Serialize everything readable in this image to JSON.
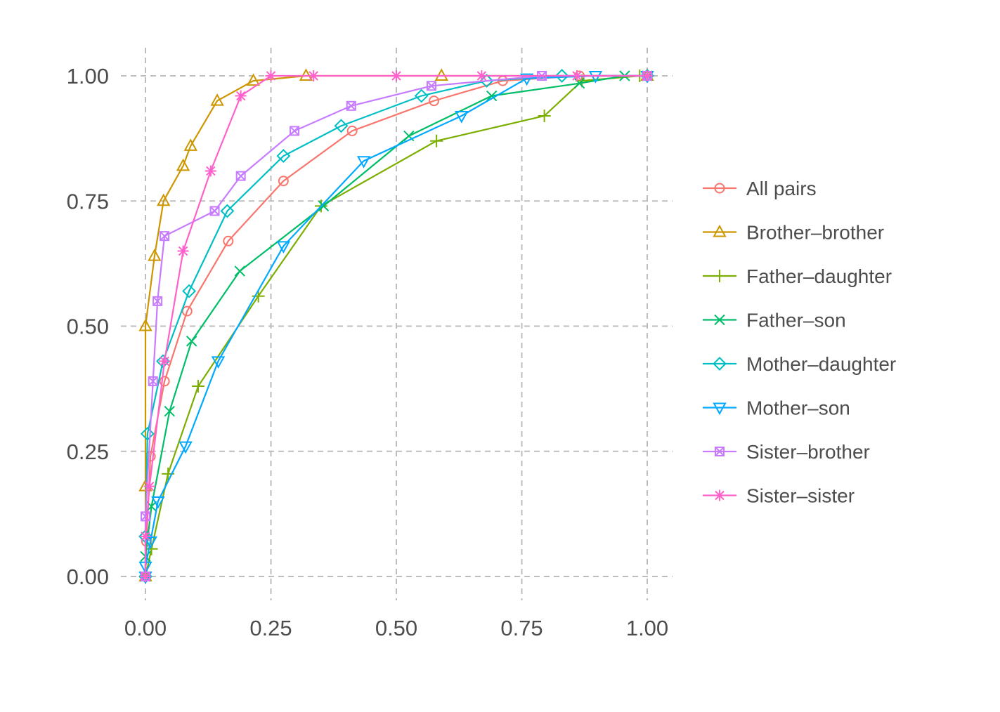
{
  "chart_data": {
    "type": "line",
    "title": "",
    "xlabel": "",
    "ylabel": "",
    "xlim": [
      0,
      1
    ],
    "ylim": [
      0,
      1
    ],
    "x_ticks": [
      "0.00",
      "0.25",
      "0.50",
      "0.75",
      "1.00"
    ],
    "y_ticks": [
      "0.00",
      "0.25",
      "0.50",
      "0.75",
      "1.00"
    ],
    "grid": true,
    "legend_position": "right",
    "series": [
      {
        "name": "All pairs",
        "color": "#F8766D",
        "marker": "circle",
        "points": [
          [
            0,
            0
          ],
          [
            0.002,
            0.07
          ],
          [
            0.01,
            0.24
          ],
          [
            0.038,
            0.39
          ],
          [
            0.083,
            0.53
          ],
          [
            0.165,
            0.67
          ],
          [
            0.275,
            0.79
          ],
          [
            0.412,
            0.89
          ],
          [
            0.575,
            0.95
          ],
          [
            0.712,
            0.99
          ],
          [
            0.865,
            1.0
          ],
          [
            1.0,
            1.0
          ]
        ]
      },
      {
        "name": "Brother–brother",
        "color": "#CD9600",
        "marker": "triangle",
        "points": [
          [
            0,
            0
          ],
          [
            0,
            0.18
          ],
          [
            0,
            0.5
          ],
          [
            0.018,
            0.64
          ],
          [
            0.036,
            0.75
          ],
          [
            0.075,
            0.82
          ],
          [
            0.09,
            0.86
          ],
          [
            0.143,
            0.95
          ],
          [
            0.215,
            0.99
          ],
          [
            0.32,
            1.0
          ],
          [
            0.59,
            1.0
          ],
          [
            1.0,
            1.0
          ]
        ]
      },
      {
        "name": "Father–daughter",
        "color": "#7CAE00",
        "marker": "plus",
        "points": [
          [
            0,
            0
          ],
          [
            0.012,
            0.055
          ],
          [
            0.045,
            0.205
          ],
          [
            0.105,
            0.38
          ],
          [
            0.225,
            0.56
          ],
          [
            0.35,
            0.74
          ],
          [
            0.58,
            0.87
          ],
          [
            0.795,
            0.92
          ],
          [
            0.87,
            0.99
          ],
          [
            0.985,
            1.0
          ],
          [
            1.0,
            1.0
          ]
        ]
      },
      {
        "name": "Father–son",
        "color": "#00BE67",
        "marker": "x",
        "points": [
          [
            0,
            0
          ],
          [
            0,
            0.04
          ],
          [
            0.012,
            0.14
          ],
          [
            0.048,
            0.33
          ],
          [
            0.092,
            0.47
          ],
          [
            0.188,
            0.61
          ],
          [
            0.355,
            0.74
          ],
          [
            0.525,
            0.88
          ],
          [
            0.69,
            0.96
          ],
          [
            0.865,
            0.985
          ],
          [
            0.955,
            1.0
          ],
          [
            1.0,
            1.0
          ]
        ]
      },
      {
        "name": "Mother–daughter",
        "color": "#00BFC4",
        "marker": "diamond",
        "points": [
          [
            0,
            0
          ],
          [
            0,
            0.08
          ],
          [
            0.004,
            0.285
          ],
          [
            0.035,
            0.43
          ],
          [
            0.087,
            0.57
          ],
          [
            0.163,
            0.73
          ],
          [
            0.275,
            0.84
          ],
          [
            0.39,
            0.9
          ],
          [
            0.55,
            0.96
          ],
          [
            0.68,
            0.99
          ],
          [
            0.83,
            1.0
          ],
          [
            1.0,
            1.0
          ]
        ]
      },
      {
        "name": "Mother–son",
        "color": "#00A9FF",
        "marker": "triangle-down",
        "points": [
          [
            0,
            0
          ],
          [
            0,
            0.02
          ],
          [
            0.01,
            0.07
          ],
          [
            0.025,
            0.15
          ],
          [
            0.08,
            0.26
          ],
          [
            0.145,
            0.43
          ],
          [
            0.275,
            0.66
          ],
          [
            0.435,
            0.83
          ],
          [
            0.63,
            0.92
          ],
          [
            0.76,
            0.995
          ],
          [
            0.897,
            1.0
          ],
          [
            1.0,
            1.0
          ]
        ]
      },
      {
        "name": "Sister–brother",
        "color": "#C77CFF",
        "marker": "square-x",
        "points": [
          [
            0,
            0
          ],
          [
            0,
            0.12
          ],
          [
            0.015,
            0.39
          ],
          [
            0.024,
            0.55
          ],
          [
            0.038,
            0.68
          ],
          [
            0.138,
            0.73
          ],
          [
            0.19,
            0.8
          ],
          [
            0.297,
            0.89
          ],
          [
            0.41,
            0.94
          ],
          [
            0.57,
            0.98
          ],
          [
            0.79,
            1.0
          ],
          [
            1.0,
            1.0
          ]
        ]
      },
      {
        "name": "Sister–sister",
        "color": "#FF61CC",
        "marker": "asterisk",
        "points": [
          [
            0,
            0
          ],
          [
            0,
            0.08
          ],
          [
            0.008,
            0.18
          ],
          [
            0.038,
            0.43
          ],
          [
            0.075,
            0.65
          ],
          [
            0.13,
            0.81
          ],
          [
            0.19,
            0.96
          ],
          [
            0.25,
            1.0
          ],
          [
            0.335,
            1.0
          ],
          [
            0.5,
            1.0
          ],
          [
            0.67,
            1.0
          ],
          [
            0.86,
            1.0
          ],
          [
            1.0,
            1.0
          ]
        ]
      }
    ]
  }
}
